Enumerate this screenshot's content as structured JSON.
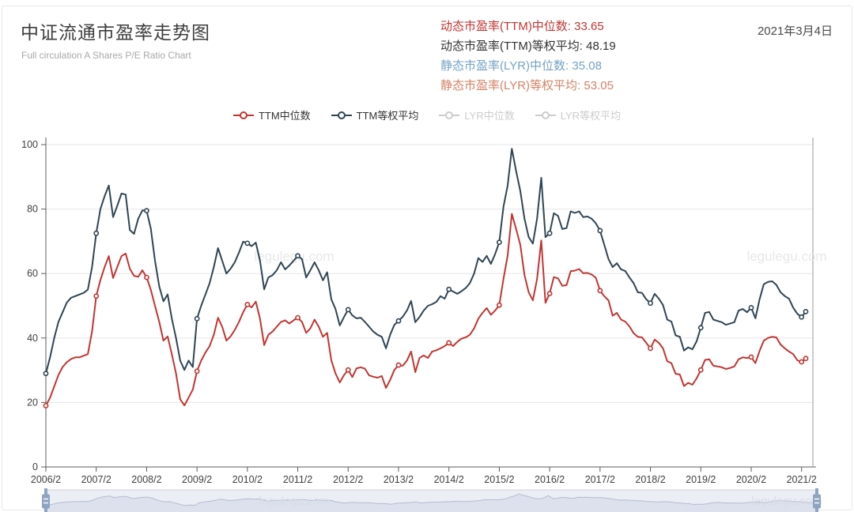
{
  "header": {
    "title": "中证流通市盈率走势图",
    "subtitle": "Full circulation A Shares P/E Ratio Chart",
    "date": "2021年3月4日",
    "stats": [
      {
        "label": "动态市盈率(TTM)中位数",
        "value": "33.65",
        "color": "#c23531"
      },
      {
        "label": "动态市盈率(TTM)等权平均",
        "value": "48.19",
        "color": "#333333"
      },
      {
        "label": "静态市盈率(LYR)中位数",
        "value": "35.08",
        "color": "#74a3c5"
      },
      {
        "label": "静态市盈率(LYR)等权平均",
        "value": "53.05",
        "color": "#d48265"
      }
    ]
  },
  "legend": [
    {
      "label": "TTM中位数",
      "color": "#c23531",
      "enabled": true
    },
    {
      "label": "TTM等权平均",
      "color": "#2f4554",
      "enabled": true
    },
    {
      "label": "LYR中位数",
      "color": "#cccccc",
      "enabled": false
    },
    {
      "label": "LYR等权平均",
      "color": "#cccccc",
      "enabled": false
    }
  ],
  "watermark": "legulegu.com",
  "colors": {
    "ttm_median": "#c23531",
    "ttm_eq_avg": "#2f4554",
    "disabled_legend": "#cccccc",
    "grid": "#e6e6e6",
    "axis": "#5b5b5b",
    "axis_label": "#404040",
    "chart_watermark": "#e8e8e8",
    "slider_bg": "#eceef5",
    "slider_area": "#dde1ee",
    "slider_line": "#b4bccf",
    "slider_border": "#ccd1de",
    "slider_handle": "#8ea4c1",
    "slider_watermark": "#d8dce8"
  },
  "chart_data": {
    "type": "line",
    "title": "中证流通市盈率走势图",
    "xlabel": "",
    "ylabel": "",
    "x_start": "2006/2",
    "x_end": "2021/3",
    "x_frequency": "monthly",
    "x_tick_labels": [
      "2006/2",
      "2007/2",
      "2008/2",
      "2009/2",
      "2010/2",
      "2011/2",
      "2012/2",
      "2013/2",
      "2014/2",
      "2015/2",
      "2016/2",
      "2017/2",
      "2018/2",
      "2019/2",
      "2020/2",
      "2021/2"
    ],
    "ylim": [
      0,
      100
    ],
    "y_ticks": [
      0,
      20,
      40,
      60,
      80,
      100
    ],
    "grid": true,
    "legend_position": "top",
    "marker_interval_months": 12,
    "series": [
      {
        "name": "TTM中位数",
        "color": "#c23531",
        "values": [
          19,
          21.5,
          25,
          28.5,
          31,
          32.5,
          33.5,
          34,
          34,
          34.5,
          35,
          42,
          53,
          58,
          62,
          65.4,
          58.6,
          62,
          65.4,
          66.2,
          61.5,
          59.3,
          59,
          61,
          58.8,
          55,
          50,
          45,
          39.2,
          40.5,
          35,
          29,
          21,
          19.1,
          21.5,
          24,
          29.7,
          33,
          35.5,
          37.5,
          41,
          46.3,
          43.5,
          39.2,
          40.5,
          42.5,
          45,
          48,
          50.4,
          49.5,
          51.3,
          46,
          37.8,
          41,
          42,
          43.5,
          45,
          45.5,
          44.5,
          45.5,
          46.3,
          45,
          41.6,
          43,
          45.7,
          43.5,
          40.4,
          41.6,
          33.1,
          29,
          26.2,
          28.5,
          30.1,
          27.9,
          30.6,
          30.9,
          30.5,
          28.4,
          28,
          27.7,
          28.2,
          24.5,
          27,
          30.1,
          31.6,
          31.4,
          33,
          35.8,
          29.4,
          33.8,
          34.6,
          33.8,
          35.8,
          36.2,
          36.8,
          37.5,
          38.5,
          37.5,
          38.8,
          39.8,
          40.2,
          41,
          43,
          46,
          47.8,
          49.3,
          47.2,
          48.5,
          50.2,
          58.3,
          65.6,
          78.5,
          73.8,
          68.9,
          59.5,
          54.2,
          51.7,
          58.3,
          70.3,
          50.9,
          53.8,
          58.9,
          58.5,
          56.2,
          56.4,
          60.7,
          60.9,
          61.4,
          60.1,
          60.2,
          59.7,
          58.7,
          54.7,
          53,
          51.7,
          46.9,
          47.8,
          45.7,
          45.1,
          43.6,
          41.5,
          40.4,
          40.2,
          38.5,
          36.8,
          39.5,
          38.5,
          36.8,
          32.8,
          32.2,
          28.9,
          28.7,
          25.1,
          26.1,
          25.5,
          27.5,
          30.1,
          33.2,
          33.4,
          31.4,
          31.2,
          30.9,
          30.4,
          30.7,
          31.2,
          33.4,
          34,
          33.8,
          34.1,
          32.2,
          36,
          39.2,
          40,
          40.4,
          40.2,
          38,
          36.8,
          35.8,
          35,
          33.1,
          32.6,
          33.65
        ]
      },
      {
        "name": "TTM等权平均",
        "color": "#2f4554",
        "values": [
          29,
          34,
          40,
          45,
          48,
          51,
          52.5,
          53,
          53.5,
          54,
          55,
          62,
          72.5,
          80,
          84,
          87.3,
          77.5,
          81,
          84.8,
          84.5,
          73.5,
          72.3,
          77,
          79.6,
          79.5,
          74,
          64,
          56,
          51.4,
          53.5,
          46,
          40,
          33,
          30.1,
          33,
          31,
          46,
          50,
          53.5,
          57,
          62,
          67.9,
          64,
          60,
          61.5,
          63.5,
          66.5,
          69.9,
          69.4,
          68.5,
          69.6,
          64,
          55.1,
          58.8,
          59.5,
          61,
          63.5,
          61.3,
          62.5,
          64,
          65.5,
          64.5,
          58.8,
          61,
          63.5,
          61,
          57.9,
          60.4,
          52,
          49,
          43.9,
          46.5,
          48.8,
          47,
          46.1,
          46.3,
          45,
          43.5,
          42,
          41,
          40.4,
          36.8,
          41,
          44.1,
          45.3,
          46.6,
          48.5,
          51.5,
          44.9,
          46.5,
          48.5,
          50,
          50.5,
          51.2,
          53,
          52.2,
          55.1,
          54.4,
          53.7,
          54.5,
          55.5,
          57,
          60,
          64.8,
          63.6,
          65.5,
          63,
          66,
          69.7,
          80.7,
          87.3,
          98.7,
          91.8,
          85.6,
          77,
          71.3,
          69.3,
          77,
          89.7,
          71.3,
          72.5,
          78.7,
          77.9,
          73.8,
          74.1,
          79.3,
          78.8,
          79.3,
          77.5,
          77.7,
          77,
          75.6,
          73.3,
          69,
          64.5,
          62,
          63.2,
          61.3,
          60.8,
          58.8,
          57,
          54.2,
          54,
          52,
          50.8,
          53.7,
          52.2,
          50.2,
          45.7,
          45.1,
          40.8,
          40.4,
          36.1,
          37.1,
          36.5,
          39,
          43.2,
          47.8,
          48.1,
          45.7,
          45.3,
          44.9,
          44.1,
          44.5,
          44.9,
          48.5,
          49,
          48,
          49.4,
          46.1,
          52,
          56.7,
          57.4,
          57.6,
          56.5,
          54.2,
          53,
          52.2,
          49.4,
          47.5,
          46.5,
          48.19
        ]
      }
    ]
  }
}
